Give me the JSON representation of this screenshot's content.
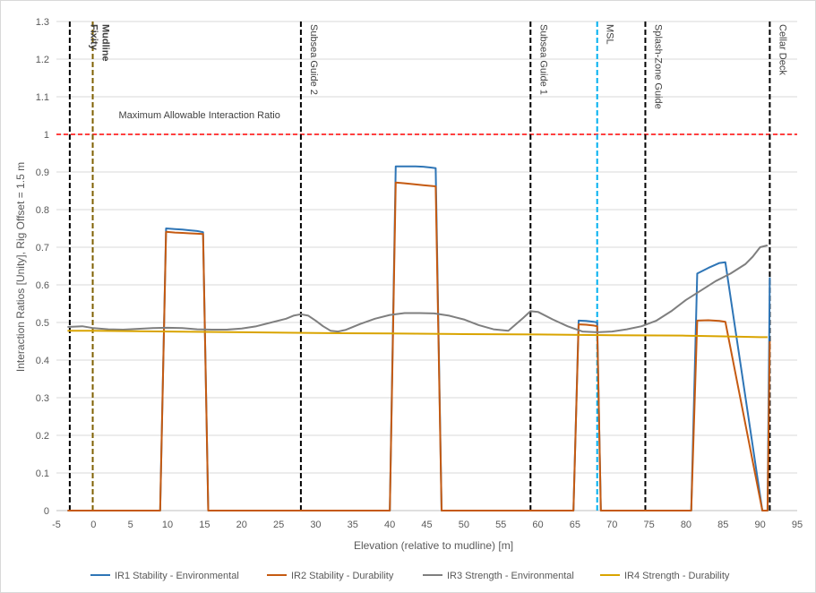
{
  "chart_data": {
    "type": "line",
    "xlabel": "Elevation (relative to mudline) [m]",
    "ylabel": "Interaction Ratios [Unity], Rig Offset = 1.5 m",
    "xlim": [
      -5,
      95
    ],
    "ylim": [
      0,
      1.3
    ],
    "xticks": [
      -5,
      0,
      5,
      10,
      15,
      20,
      25,
      30,
      35,
      40,
      45,
      50,
      55,
      60,
      65,
      70,
      75,
      80,
      85,
      90,
      95
    ],
    "yticks": [
      0,
      0.1,
      0.2,
      0.3,
      0.4,
      0.5,
      0.6,
      0.7,
      0.8,
      0.9,
      1,
      1.1,
      1.2,
      1.3
    ],
    "grid": true,
    "legend_position": "bottom",
    "series": [
      {
        "name": "IR1 Stability - Environmental",
        "color": "#2e75b6",
        "x": [
          -3.5,
          9,
          9.8,
          11,
          12,
          13,
          14,
          14.8,
          15.5,
          40.0,
          40.8,
          42,
          43.5,
          44.5,
          45.5,
          46.2,
          47,
          64.8,
          65.5,
          66.5,
          67.5,
          68,
          68.5,
          80.7,
          81.5,
          83,
          84.5,
          85.3,
          90.3,
          91,
          91.3
        ],
        "y": [
          0,
          0,
          0.75,
          0.748,
          0.747,
          0.745,
          0.743,
          0.74,
          0,
          0,
          0.915,
          0.915,
          0.915,
          0.914,
          0.912,
          0.91,
          0,
          0,
          0.505,
          0.504,
          0.502,
          0.5,
          0,
          0,
          0.63,
          0.645,
          0.658,
          0.66,
          0,
          0,
          0.62
        ]
      },
      {
        "name": "IR2 Stability - Durability",
        "color": "#c55a11",
        "x": [
          -3.5,
          9,
          9.8,
          11,
          12,
          13,
          14,
          14.8,
          15.5,
          40.0,
          40.8,
          42,
          43.5,
          44.5,
          45.5,
          46.2,
          47,
          64.8,
          65.5,
          66.5,
          67.5,
          68,
          68.5,
          80.7,
          81.5,
          83,
          84.5,
          85.3,
          90.3,
          91,
          91.3
        ],
        "y": [
          0,
          0,
          0.741,
          0.739,
          0.738,
          0.737,
          0.736,
          0.735,
          0,
          0,
          0.872,
          0.87,
          0.867,
          0.865,
          0.863,
          0.862,
          0,
          0,
          0.495,
          0.494,
          0.492,
          0.49,
          0,
          0,
          0.505,
          0.506,
          0.504,
          0.502,
          0,
          0,
          0.45
        ]
      },
      {
        "name": "IR3 Strength - Environmental",
        "color": "#7f7f7f",
        "x": [
          -3.5,
          -1.5,
          0,
          2,
          4,
          6,
          8,
          10,
          12,
          14,
          16,
          18,
          20,
          22,
          24,
          26,
          27,
          28,
          29,
          30,
          31,
          32,
          33,
          34,
          36,
          38,
          40,
          42,
          44,
          46,
          48,
          50,
          52,
          54,
          56,
          58,
          59,
          60,
          62,
          64,
          66,
          68,
          70,
          72,
          74,
          76,
          78,
          80,
          82,
          84,
          86,
          88,
          89,
          90,
          91
        ],
        "y": [
          0.488,
          0.49,
          0.485,
          0.482,
          0.481,
          0.483,
          0.485,
          0.486,
          0.485,
          0.482,
          0.481,
          0.481,
          0.484,
          0.49,
          0.5,
          0.51,
          0.518,
          0.522,
          0.518,
          0.505,
          0.49,
          0.478,
          0.476,
          0.48,
          0.496,
          0.51,
          0.52,
          0.525,
          0.525,
          0.524,
          0.518,
          0.508,
          0.493,
          0.482,
          0.478,
          0.512,
          0.53,
          0.528,
          0.508,
          0.49,
          0.476,
          0.474,
          0.476,
          0.482,
          0.49,
          0.505,
          0.53,
          0.56,
          0.585,
          0.61,
          0.63,
          0.655,
          0.675,
          0.7,
          0.705
        ]
      },
      {
        "name": "IR4 Strength - Durability",
        "color": "#d9a400",
        "x": [
          -3.5,
          0,
          10,
          20,
          30,
          40,
          50,
          60,
          70,
          80,
          85,
          90,
          91
        ],
        "y": [
          0.478,
          0.478,
          0.476,
          0.474,
          0.472,
          0.471,
          0.469,
          0.468,
          0.466,
          0.465,
          0.463,
          0.461,
          0.461
        ]
      }
    ],
    "reference_lines": [
      {
        "x": -3.2,
        "color": "#000000",
        "label": "",
        "bold": false
      },
      {
        "x": -0.1,
        "color": "#7f6000",
        "label": "Mudline\nFixity",
        "bold": true
      },
      {
        "x": 28.0,
        "color": "#000000",
        "label": "Subsea Guide 2",
        "bold": false
      },
      {
        "x": 59.0,
        "color": "#000000",
        "label": "Subsea Guide 1",
        "bold": false
      },
      {
        "x": 68.0,
        "color": "#00b0f0",
        "label": "MSL",
        "bold": false
      },
      {
        "x": 74.5,
        "color": "#000000",
        "label": "Splash-Zone Guide",
        "bold": false
      },
      {
        "x": 91.3,
        "color": "#000000",
        "label": "Cellar Deck",
        "bold": false
      }
    ],
    "horizontal_reference": {
      "y": 1.0,
      "color": "#ff0000",
      "label": "Maximum Allowable Interaction Ratio"
    }
  }
}
